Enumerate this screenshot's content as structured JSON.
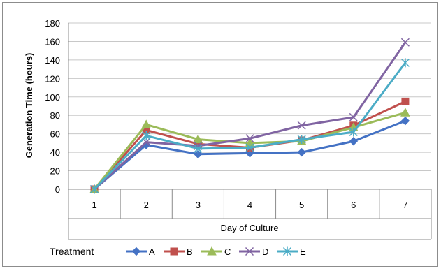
{
  "chart_data": {
    "type": "line",
    "title": "",
    "xlabel": "Day of Culture",
    "ylabel": "Generation Time (hours)",
    "categories": [
      "1",
      "2",
      "3",
      "4",
      "5",
      "6",
      "7"
    ],
    "ylim": [
      0,
      180
    ],
    "yticks": [
      "0",
      "20",
      "40",
      "60",
      "80",
      "100",
      "120",
      "140",
      "160",
      "180"
    ],
    "grid": "horizontal",
    "legend": {
      "title": "Treatment",
      "placement": "bottom"
    },
    "series": [
      {
        "name": "A",
        "color": "#4472C4",
        "marker": "diamond",
        "values": [
          0,
          48,
          38,
          39,
          40,
          52,
          74
        ]
      },
      {
        "name": "B",
        "color": "#C0504D",
        "marker": "square",
        "values": [
          0,
          64,
          49,
          45,
          53,
          69,
          95
        ]
      },
      {
        "name": "C",
        "color": "#9BBB59",
        "marker": "triangle",
        "values": [
          0,
          70,
          54,
          50,
          52,
          67,
          83
        ]
      },
      {
        "name": "D",
        "color": "#8064A2",
        "marker": "x",
        "values": [
          0,
          51,
          47,
          55,
          69,
          78,
          159
        ]
      },
      {
        "name": "E",
        "color": "#4BACC6",
        "marker": "star",
        "values": [
          0,
          58,
          44,
          45,
          54,
          62,
          137
        ]
      }
    ]
  }
}
